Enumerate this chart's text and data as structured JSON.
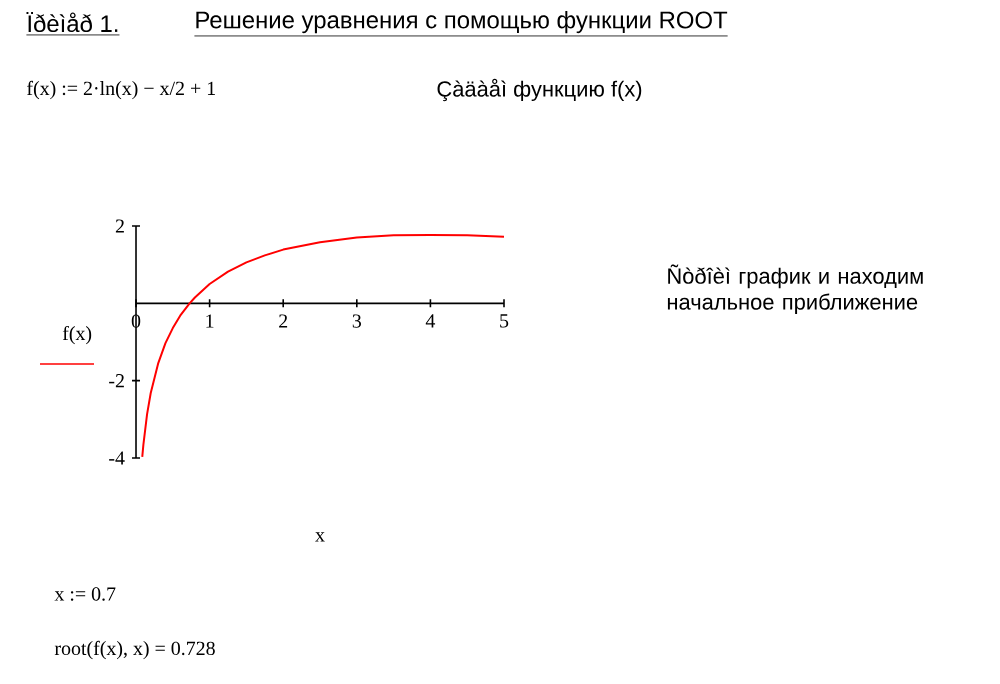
{
  "chart_data": {
    "type": "line",
    "title": "Ïðèìåð 1.",
    "subtitle": "Решение  уравнения с помощью функции ROOT",
    "xlabel": "x",
    "ylabel": "f(x)",
    "annotations": [
      "f(x) := 2·ln(x) − x/2 + 1",
      "Çàäàåì    функцию f(x)",
      "Ñòðîèì     график и находим начальное приближение",
      "x := 0.7",
      "root(f(x), x) = 0.728"
    ],
    "x": [
      0.085,
      0.1,
      0.15,
      0.2,
      0.3,
      0.4,
      0.5,
      0.6,
      0.728,
      0.8,
      1,
      1.25,
      1.5,
      1.75,
      2,
      2.5,
      3,
      3.5,
      4,
      4.5,
      5
    ],
    "series": [
      {
        "color": "#ff0000",
        "values": [
          -3.97,
          -3.66,
          -2.87,
          -2.32,
          -1.56,
          -1.03,
          -0.64,
          -0.32,
          0.0,
          0.15,
          0.5,
          0.82,
          1.06,
          1.24,
          1.39,
          1.58,
          1.7,
          1.76,
          1.77,
          1.76,
          1.72
        ]
      }
    ],
    "xlim": [
      0,
      5
    ],
    "ylim": [
      -4,
      2
    ],
    "xticks": [
      0,
      1,
      2,
      3,
      4,
      5
    ],
    "yticks": [
      -4,
      -2,
      2
    ],
    "grid": false,
    "marker": "none",
    "line_style": "solid"
  }
}
